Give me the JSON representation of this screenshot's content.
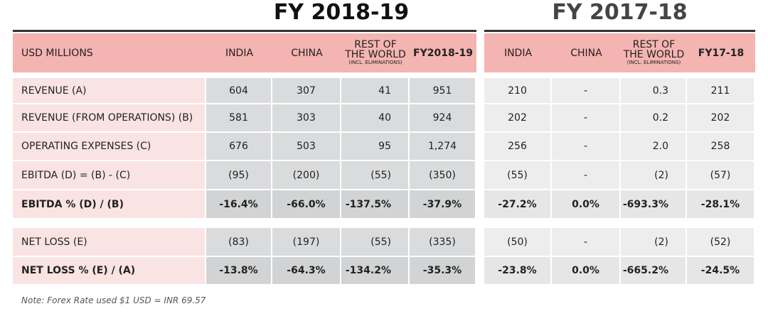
{
  "titles": [
    "FY 2018-19",
    "FY 2017-18"
  ],
  "header": {
    "label": "USD MILLIONS",
    "columns": [
      {
        "label": "INDIA"
      },
      {
        "label": "CHINA"
      },
      {
        "label": "REST OF THE WORLD",
        "sub": "(INCL. ELIMINATIONS)"
      },
      {
        "label": "FY2018-19"
      },
      {
        "label": "INDIA"
      },
      {
        "label": "CHINA"
      },
      {
        "label": "REST OF THE WORLD",
        "sub": "(INCL. ELIMINATIONS)"
      },
      {
        "label": "FY17-18"
      }
    ]
  },
  "rows": [
    {
      "label": "REVENUE (A)",
      "values": [
        "604",
        "307",
        "41",
        "951",
        "210",
        "-",
        "0.3",
        "211"
      ]
    },
    {
      "label": "REVENUE (FROM OPERATIONS) (B)",
      "values": [
        "581",
        "303",
        "40",
        "924",
        "202",
        "-",
        "0.2",
        "202"
      ]
    },
    {
      "label": "OPERATING EXPENSES (C)",
      "values": [
        "676",
        "503",
        "95",
        "1,274",
        "256",
        "-",
        "2.0",
        "258"
      ]
    },
    {
      "label": "EBITDA (D) = (B) - (C)",
      "values": [
        "(95)",
        "(200)",
        "(55)",
        "(350)",
        "(55)",
        "-",
        "(2)",
        "(57)"
      ]
    },
    {
      "label": "EBITDA % (D) / (B)",
      "values": [
        "-16.4%",
        "-66.0%",
        "-137.5%",
        "-37.9%",
        "-27.2%",
        "0.0%",
        "-693.3%",
        "-28.1%"
      ]
    },
    {
      "label": "NET LOSS (E)",
      "values": [
        "(83)",
        "(197)",
        "(55)",
        "(335)",
        "(50)",
        "-",
        "(2)",
        "(52)"
      ]
    },
    {
      "label": "NET LOSS % (E) / (A)",
      "values": [
        "-13.8%",
        "-64.3%",
        "-134.2%",
        "-35.3%",
        "-23.8%",
        "0.0%",
        "-665.2%",
        "-24.5%"
      ]
    }
  ],
  "note": "Note: Forex Rate used $1 USD = INR 69.57"
}
